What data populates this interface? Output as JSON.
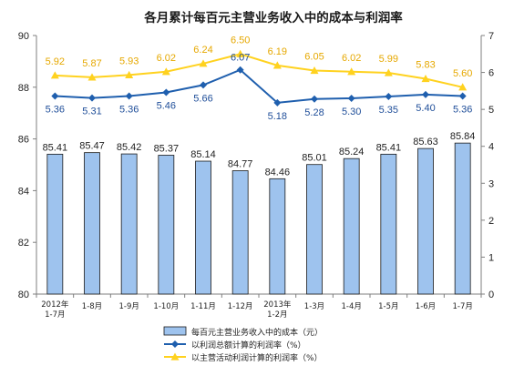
{
  "chart_data": {
    "type": "bar",
    "title": "各月累计每百元主营业务收入中的成本与利润率",
    "categories": [
      [
        "2012年",
        "1-7月"
      ],
      [
        "1-8月"
      ],
      [
        "1-9月"
      ],
      [
        "1-10月"
      ],
      [
        "1-11月"
      ],
      [
        "1-12月"
      ],
      [
        "2013年",
        "1-2月"
      ],
      [
        "1-3月"
      ],
      [
        "1-4月"
      ],
      [
        "1-5月"
      ],
      [
        "1-6月"
      ],
      [
        "1-7月"
      ]
    ],
    "left_axis": {
      "min": 80,
      "max": 90,
      "ticks": [
        "80",
        "82",
        "84",
        "86",
        "88",
        "90"
      ]
    },
    "right_axis": {
      "min": 0,
      "max": 7,
      "ticks": [
        "0",
        "1",
        "2",
        "3",
        "4",
        "5",
        "6",
        "7"
      ]
    },
    "series": [
      {
        "name": "每百元主营业务收入中的成本（元）",
        "type": "bar",
        "axis": "left",
        "color": "#9ec3ee",
        "values": [
          85.41,
          85.47,
          85.42,
          85.37,
          85.14,
          84.77,
          84.46,
          85.01,
          85.24,
          85.41,
          85.63,
          85.84
        ],
        "labels": [
          "85.41",
          "85.47",
          "85.42",
          "85.37",
          "85.14",
          "84.77",
          "84.46",
          "85.01",
          "85.24",
          "85.41",
          "85.63",
          "85.84"
        ]
      },
      {
        "name": "以利润总额计算的利润率（%）",
        "type": "line",
        "axis": "right",
        "color": "#1f5fae",
        "marker": "diamond",
        "values": [
          5.36,
          5.31,
          5.36,
          5.46,
          5.66,
          6.07,
          5.18,
          5.28,
          5.3,
          5.35,
          5.4,
          5.36
        ],
        "labels": [
          "5.36",
          "5.31",
          "5.36",
          "5.46",
          "5.66",
          "6.07",
          "5.18",
          "5.28",
          "5.30",
          "5.35",
          "5.40",
          "5.36"
        ]
      },
      {
        "name": "以主营活动利润计算的利润率（%）",
        "type": "line",
        "axis": "right",
        "color": "#ffd21f",
        "marker": "triangle",
        "values": [
          5.92,
          5.87,
          5.93,
          6.02,
          6.24,
          6.5,
          6.19,
          6.05,
          6.02,
          5.99,
          5.83,
          5.6
        ],
        "labels": [
          "5.92",
          "5.87",
          "5.93",
          "6.02",
          "6.24",
          "6.50",
          "6.19",
          "6.05",
          "6.02",
          "5.99",
          "5.83",
          "5.60"
        ]
      }
    ],
    "legend_position": "bottom-center",
    "grid": false
  }
}
